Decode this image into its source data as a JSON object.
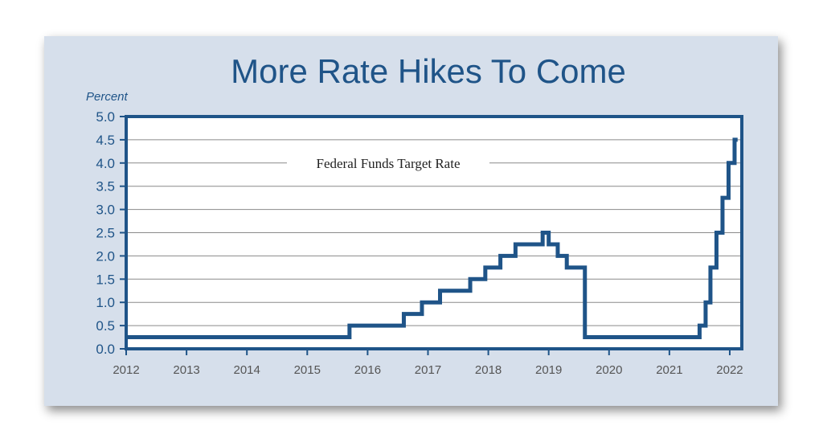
{
  "chart_data": {
    "type": "line",
    "title": "More Rate Hikes To Come",
    "ylabel": "Percent",
    "xlabel": "",
    "series_label": "Federal Funds Target Rate",
    "xlim": [
      2012.0,
      2022.2
    ],
    "ylim": [
      0,
      5.0
    ],
    "y_ticks": [
      "0.0",
      "0.5",
      "1.0",
      "1.5",
      "2.0",
      "2.5",
      "3.0",
      "3.5",
      "4.0",
      "4.5",
      "5.0"
    ],
    "x_ticks": [
      "2012",
      "2013",
      "2014",
      "2015",
      "2016",
      "2017",
      "2018",
      "2019",
      "2020",
      "2021",
      "2022"
    ],
    "grid": true,
    "series": [
      {
        "name": "Federal Funds Target Rate",
        "x": [
          2012.0,
          2015.7,
          2016.6,
          2016.9,
          2017.2,
          2017.45,
          2017.7,
          2017.95,
          2018.2,
          2018.45,
          2018.9,
          2019.0,
          2019.15,
          2019.3,
          2019.55,
          2019.6,
          2019.6,
          2021.4,
          2021.5,
          2021.6,
          2021.68,
          2021.78,
          2021.88,
          2021.98,
          2022.08,
          2022.13
        ],
        "values": [
          0.25,
          0.5,
          0.75,
          1.0,
          1.25,
          1.25,
          1.5,
          1.75,
          2.0,
          2.25,
          2.5,
          2.25,
          2.0,
          1.75,
          1.75,
          1.25,
          0.25,
          0.25,
          0.5,
          1.0,
          1.75,
          2.5,
          3.25,
          4.0,
          4.5,
          4.5
        ]
      }
    ]
  },
  "colors": {
    "card_bg": "#d6dfeb",
    "plot_bg": "#ffffff",
    "line": "#1f5488",
    "frame": "#1f5488",
    "grid": "#8a8a8a",
    "title": "#1f5488",
    "tick_text": "#1f5488",
    "xtick_text": "#555555",
    "annotation": "#222222"
  }
}
